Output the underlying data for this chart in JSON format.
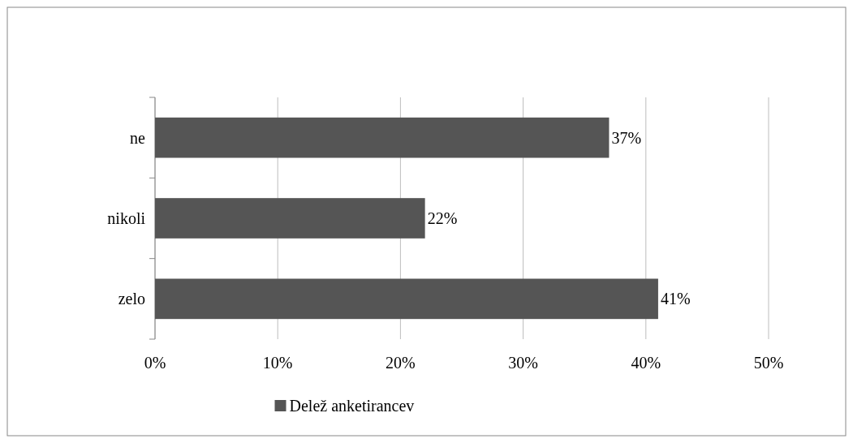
{
  "chart_data": {
    "type": "bar",
    "orientation": "horizontal",
    "categories": [
      "ne",
      "nikoli",
      "zelo"
    ],
    "series": [
      {
        "name": "Delež anketirancev",
        "color": "#555555",
        "values": [
          37,
          22,
          41
        ],
        "value_labels": [
          "37%",
          "22%",
          "41%"
        ]
      }
    ],
    "xlim": [
      0,
      50
    ],
    "xticks": [
      {
        "value": 0,
        "label": "0%"
      },
      {
        "value": 10,
        "label": "10%"
      },
      {
        "value": 20,
        "label": "20%"
      },
      {
        "value": 30,
        "label": "30%"
      },
      {
        "value": 40,
        "label": "40%"
      },
      {
        "value": 50,
        "label": "50%"
      }
    ],
    "grid": "x",
    "legend": "bottom"
  }
}
